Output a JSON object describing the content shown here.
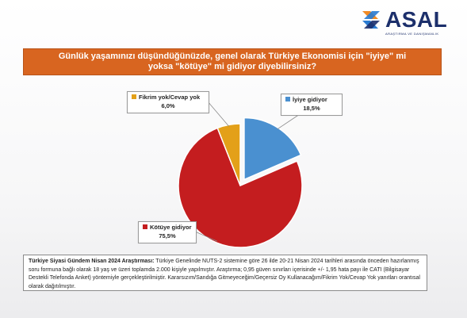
{
  "brand": {
    "name": "ASAL",
    "tagline": "ARAŞTIRMA VE DANIŞMANLIK",
    "logo_colors": [
      "#f28b24",
      "#2a7bd1",
      "#1c2f6b"
    ]
  },
  "title": "Günlük yaşamınızı düşündüğünüzde, genel olarak Türkiye Ekonomisi için \"iyiye\" mi yoksa \"kötüye\" mi gidiyor diyebilirsiniz?",
  "chart_data": {
    "type": "pie",
    "categories": [
      "İyiye gidiyor",
      "Kötüye gidiyor",
      "Fikrim yok/Cevap yok"
    ],
    "values": [
      18.5,
      75.5,
      6.0
    ],
    "value_labels": [
      "18,5%",
      "75,5%",
      "6,0%"
    ],
    "colors": [
      "#4a90d0",
      "#c41d1f",
      "#e3a019"
    ],
    "exploded": "İyiye gidiyor"
  },
  "footer": {
    "bold": "Türkiye Siyasi Gündem Nisan 2024 Araştırması:",
    "text": " Türkiye Genelinde NUTS-2 sistemine göre 26 ilde 20-21 Nisan 2024 tarihleri arasında önceden hazırlanmış soru formuna bağlı olarak 18 yaş ve üzeri toplamda 2.000 kişiyle yapılmıştır. Araştırma; 0,95 güven sınırları içerisinde +/- 1,95 hata payı ile CATI (Bilgisayar Destekli Telefonda Anket) yöntemiyle gerçekleştirilmiştir. Kararsızım/Sandığa Gitmeyeceğim/Geçersiz Oy Kullanacağım/Fikrim Yok/Cevap Yok yanıtları orantısal olarak dağıtılmıştır."
  }
}
